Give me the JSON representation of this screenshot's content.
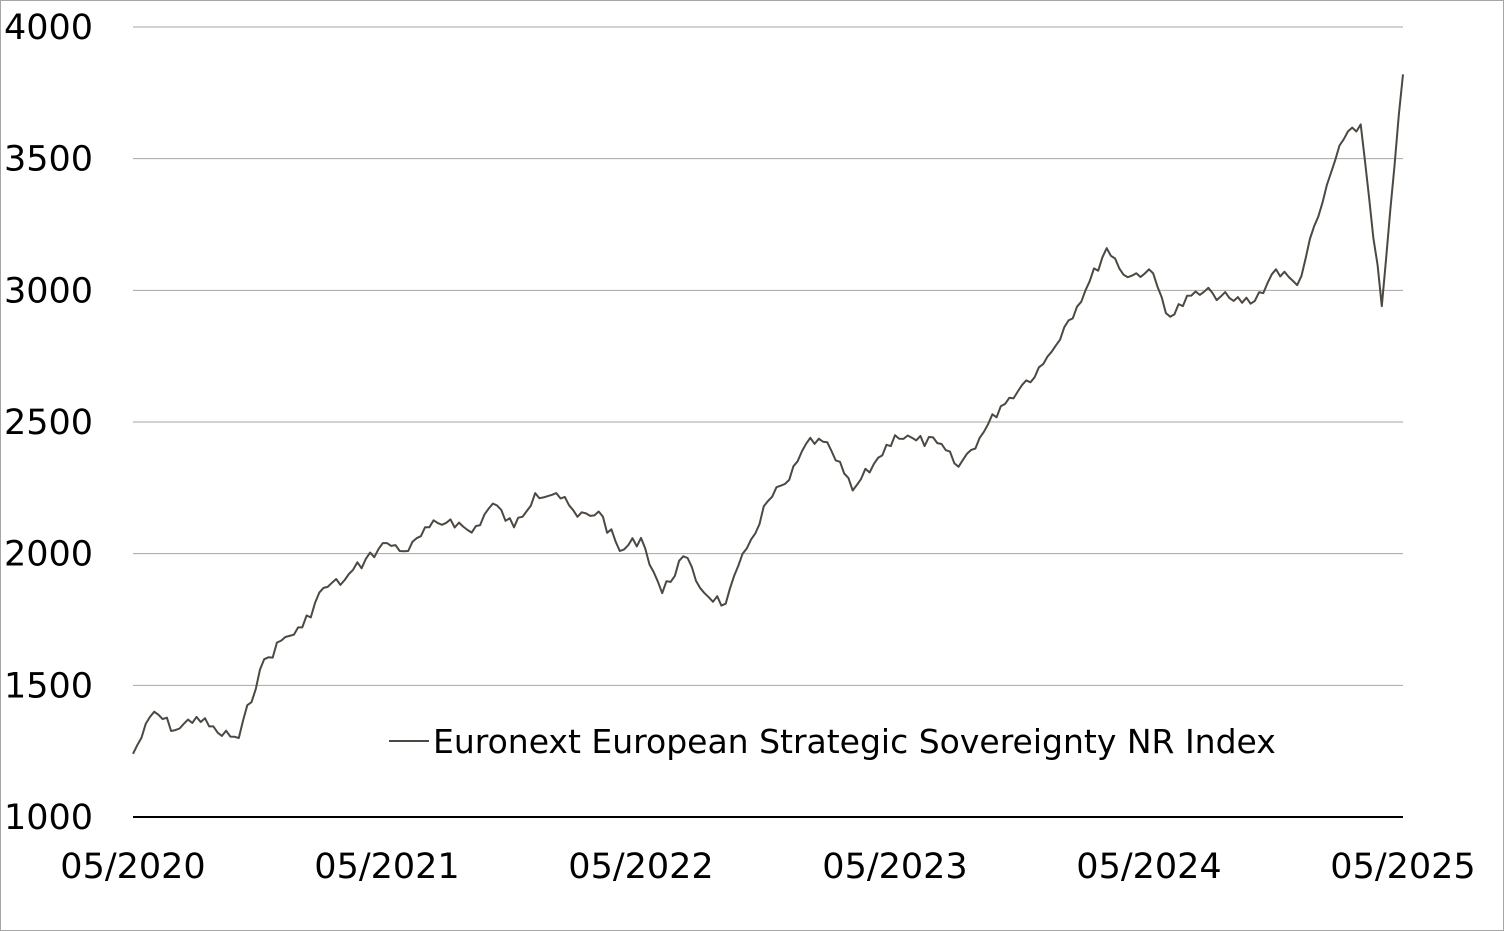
{
  "chart_data": {
    "type": "line",
    "title": "",
    "xlabel": "",
    "ylabel": "",
    "ylim": [
      1000,
      4000
    ],
    "y_ticks": [
      "1000",
      "1500",
      "2000",
      "2500",
      "3000",
      "3500",
      "4000"
    ],
    "x_ticks": [
      "05/2020",
      "05/2021",
      "05/2022",
      "05/2023",
      "05/2024",
      "05/2025"
    ],
    "x_range": [
      "2020-05",
      "2025-05"
    ],
    "grid": "horizontal",
    "legend_position": "bottom-center",
    "line_color": "#4d4842",
    "grid_color": "#a6a6a6",
    "series": [
      {
        "name": "Euronext European Strategic Sovereignty NR Index",
        "x": [
          "2020-05",
          "2020-06",
          "2020-07",
          "2020-08",
          "2020-09",
          "2020-10",
          "2020-11",
          "2020-12",
          "2021-01",
          "2021-02",
          "2021-03",
          "2021-04",
          "2021-05",
          "2021-06",
          "2021-07",
          "2021-08",
          "2021-09",
          "2021-10",
          "2021-11",
          "2021-12",
          "2022-01",
          "2022-02",
          "2022-03",
          "2022-04",
          "2022-05",
          "2022-06",
          "2022-07",
          "2022-08",
          "2022-09",
          "2022-10",
          "2022-11",
          "2022-12",
          "2023-01",
          "2023-02",
          "2023-03",
          "2023-04",
          "2023-05",
          "2023-06",
          "2023-07",
          "2023-08",
          "2023-09",
          "2023-10",
          "2023-11",
          "2023-12",
          "2024-01",
          "2024-02",
          "2024-03",
          "2024-04",
          "2024-05",
          "2024-06",
          "2024-07",
          "2024-08",
          "2024-09",
          "2024-10",
          "2024-11",
          "2024-12",
          "2025-01",
          "2025-02",
          "2025-03",
          "2025-04",
          "2025-05"
        ],
        "values": [
          1240,
          1400,
          1330,
          1380,
          1320,
          1300,
          1560,
          1670,
          1720,
          1870,
          1900,
          1980,
          2040,
          2010,
          2100,
          2130,
          2080,
          2190,
          2100,
          2230,
          2230,
          2140,
          2160,
          2010,
          2060,
          1850,
          1990,
          1850,
          1810,
          2020,
          2200,
          2280,
          2440,
          2390,
          2240,
          2340,
          2450,
          2430,
          2420,
          2330,
          2440,
          2560,
          2640,
          2720,
          2860,
          3000,
          3160,
          3050,
          3080,
          2900,
          2980,
          2990,
          2960,
          2960,
          3080,
          3020,
          3280,
          3550,
          3630,
          2940,
          3820
        ]
      }
    ]
  }
}
